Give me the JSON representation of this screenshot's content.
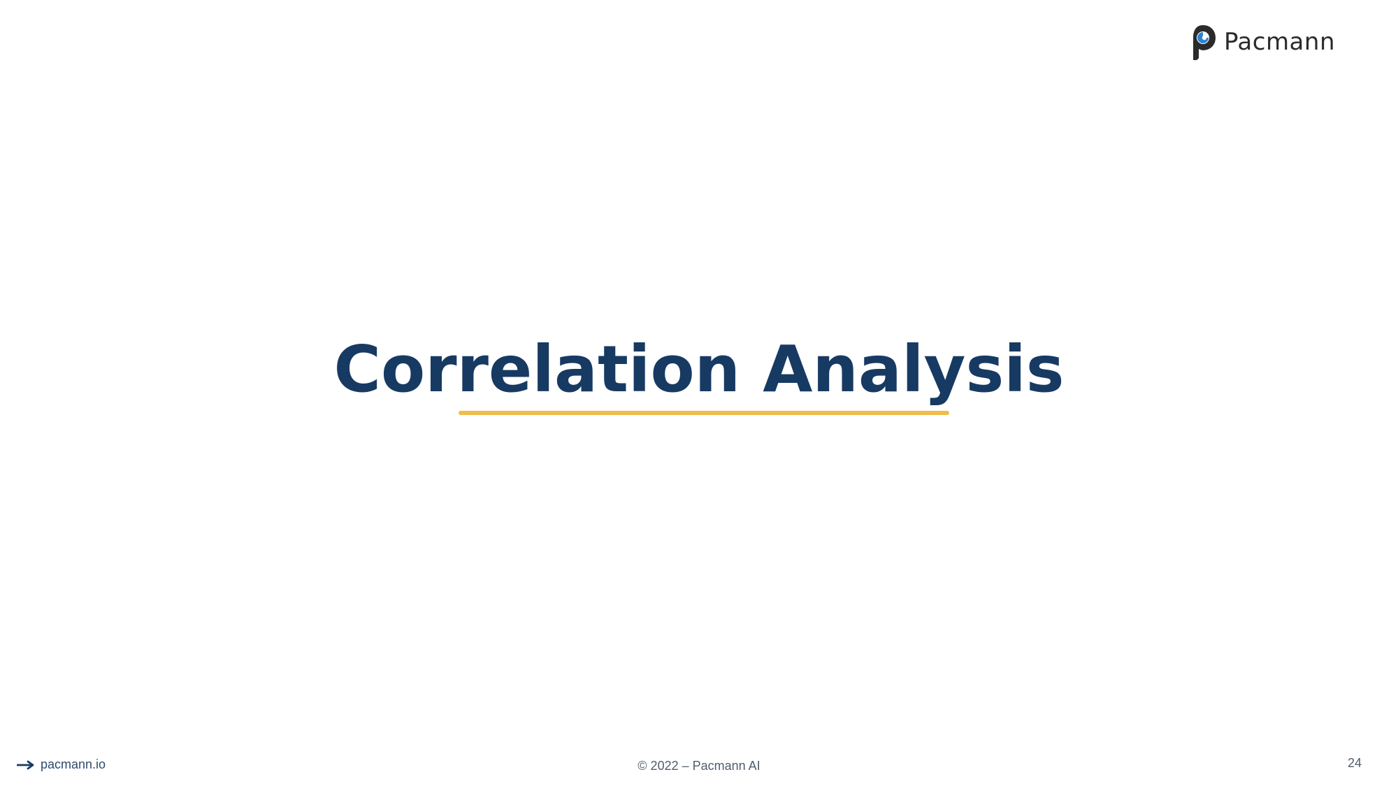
{
  "brand": {
    "logo_text": "Pacmann",
    "logo_icon": "pacmann-logo-icon",
    "text_color": "#2b2b2b"
  },
  "slide": {
    "title": "Correlation Analysis",
    "title_color": "#173a63",
    "underline_color": "#f0bd4a"
  },
  "footer": {
    "website_icon": "arrow-right-icon",
    "website": "pacmann.io",
    "copyright": "© 2022 – Pacmann AI",
    "page_number": "24"
  }
}
